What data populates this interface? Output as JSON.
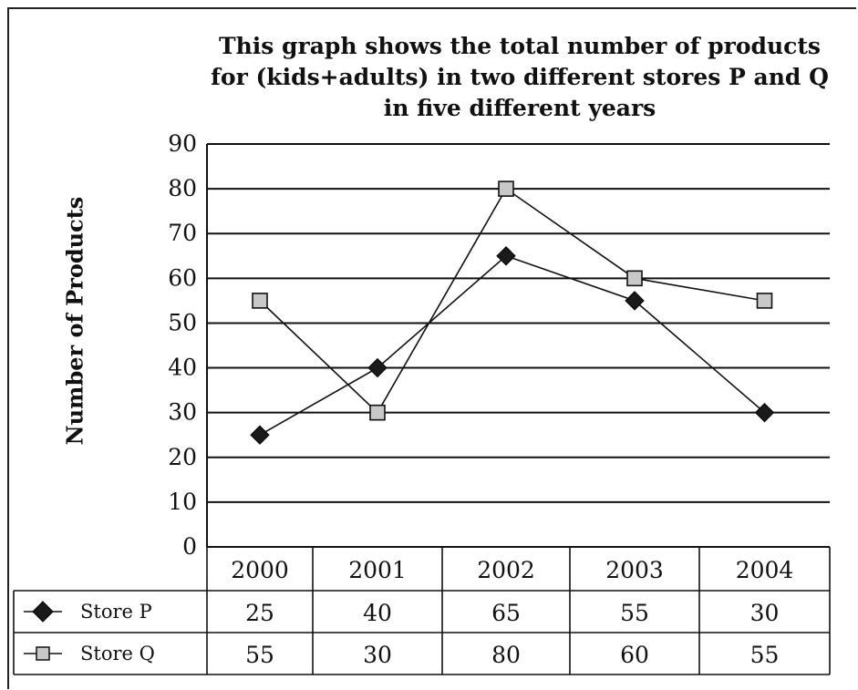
{
  "chart_data": {
    "type": "line",
    "title_lines": [
      "This graph shows the total number of products",
      "for (kids+adults) in two different stores P and Q",
      "in five different years"
    ],
    "xlabel": "",
    "ylabel": "Number of Products",
    "categories": [
      "2000",
      "2001",
      "2002",
      "2003",
      "2004"
    ],
    "ylim": [
      0,
      90
    ],
    "yticks": [
      "0",
      "10",
      "20",
      "30",
      "40",
      "50",
      "60",
      "70",
      "80",
      "90"
    ],
    "grid": true,
    "legend_placement": "data table below chart",
    "series": [
      {
        "name": "Store P",
        "marker": "diamond",
        "color": "#1a1a1a",
        "values": [
          25,
          40,
          65,
          55,
          30
        ],
        "labels": [
          "25",
          "40",
          "65",
          "55",
          "30"
        ]
      },
      {
        "name": "Store Q",
        "marker": "square",
        "color": "#c8c8c8",
        "values": [
          55,
          30,
          80,
          60,
          55
        ],
        "labels": [
          "55",
          "30",
          "80",
          "60",
          "55"
        ]
      }
    ]
  }
}
